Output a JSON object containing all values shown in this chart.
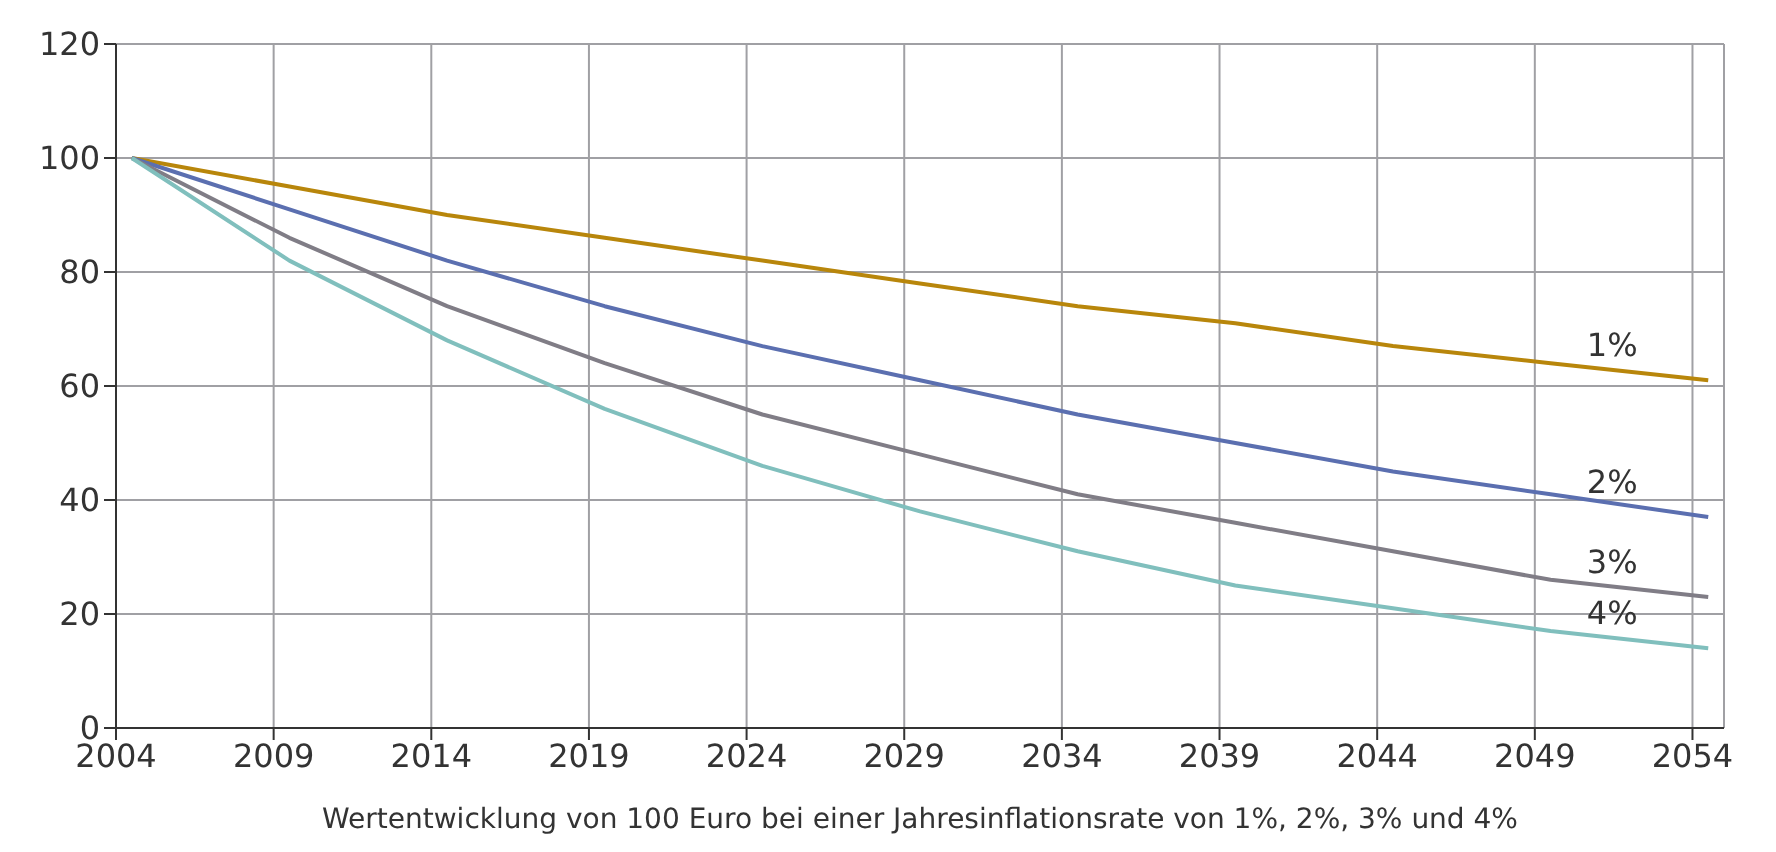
{
  "chart_data": {
    "type": "line",
    "xlabel": "Wertentwicklung von 100 Euro bei einer Jahresinflationsrate von 1%, 2%, 3% und 4%",
    "x": [
      2004.5,
      2009.5,
      2014.5,
      2019.5,
      2024.5,
      2029.5,
      2034.5,
      2039.5,
      2044.5,
      2049.5,
      2054.5
    ],
    "series": [
      {
        "name": "1%",
        "color": "#b8860b",
        "values": [
          100,
          95,
          90,
          86,
          82,
          78,
          74,
          71,
          67,
          64,
          61
        ]
      },
      {
        "name": "2%",
        "color": "#5b6fb0",
        "values": [
          100,
          91,
          82,
          74,
          67,
          61,
          55,
          50,
          45,
          41,
          37
        ]
      },
      {
        "name": "3%",
        "color": "#807d86",
        "values": [
          100,
          86,
          74,
          64,
          55,
          48,
          41,
          36,
          31,
          26,
          23
        ]
      },
      {
        "name": "4%",
        "color": "#80bfbd",
        "values": [
          100,
          82,
          68,
          56,
          46,
          38,
          31,
          25,
          21,
          17,
          14
        ]
      }
    ],
    "xlim": [
      2004,
      2055
    ],
    "xticks": [
      2004,
      2009,
      2014,
      2019,
      2024,
      2029,
      2034,
      2039,
      2044,
      2049,
      2054
    ],
    "ylim": [
      0,
      120
    ],
    "yticks": [
      0,
      20,
      40,
      60,
      80,
      100,
      120
    ],
    "grid": true,
    "legend": false,
    "marker": "none",
    "line_style": "solid"
  }
}
